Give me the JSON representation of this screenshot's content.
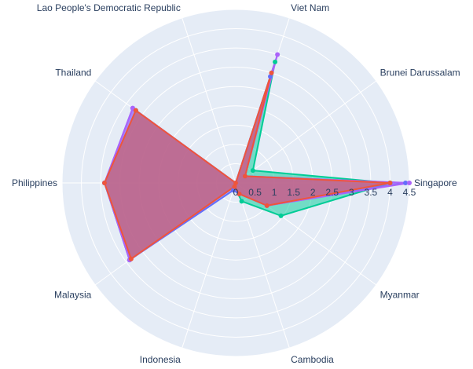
{
  "chart_data": {
    "type": "radar",
    "categories": [
      "Singapore",
      "Brunei Darussalam",
      "Viet Nam",
      "Lao People's Democratic Republic",
      "Thailand",
      "Philippines",
      "Malaysia",
      "Indonesia",
      "Cambodia",
      "Myanmar"
    ],
    "radial_ticks": [
      "0",
      "0.5",
      "1",
      "1.5",
      "2",
      "2.5",
      "3",
      "3.5",
      "4",
      "4.5"
    ],
    "radial_range": [
      0,
      4.5
    ],
    "angular_direction": "counterclockwise",
    "first_category_angle_deg": 0,
    "background_color": "#e5ecf6",
    "grid_color": "#ffffff",
    "text_color": "#2a3f5f",
    "series": [
      {
        "color": "#00cc96",
        "fill": "rgba(0,204,150,0.5)",
        "values": [
          4.0,
          0.55,
          3.3,
          0.0,
          3.2,
          3.4,
          3.4,
          0.1,
          0.5,
          1.45
        ]
      },
      {
        "color": "#636efa",
        "fill": "rgba(99,110,250,0.5)",
        "values": [
          4.4,
          0.3,
          2.9,
          0.0,
          3.3,
          3.4,
          3.4,
          0.2,
          0.3,
          1.0
        ]
      },
      {
        "color": "#ab63fa",
        "fill": "rgba(171,99,250,0.5)",
        "values": [
          4.5,
          0.3,
          3.5,
          0.0,
          3.3,
          3.4,
          3.4,
          0.1,
          0.3,
          1.0
        ]
      },
      {
        "color": "#ef553b",
        "fill": "rgba(239,85,59,0.5)",
        "values": [
          4.0,
          0.3,
          3.0,
          0.0,
          3.2,
          3.4,
          3.35,
          0.1,
          0.3,
          1.0
        ]
      }
    ]
  }
}
